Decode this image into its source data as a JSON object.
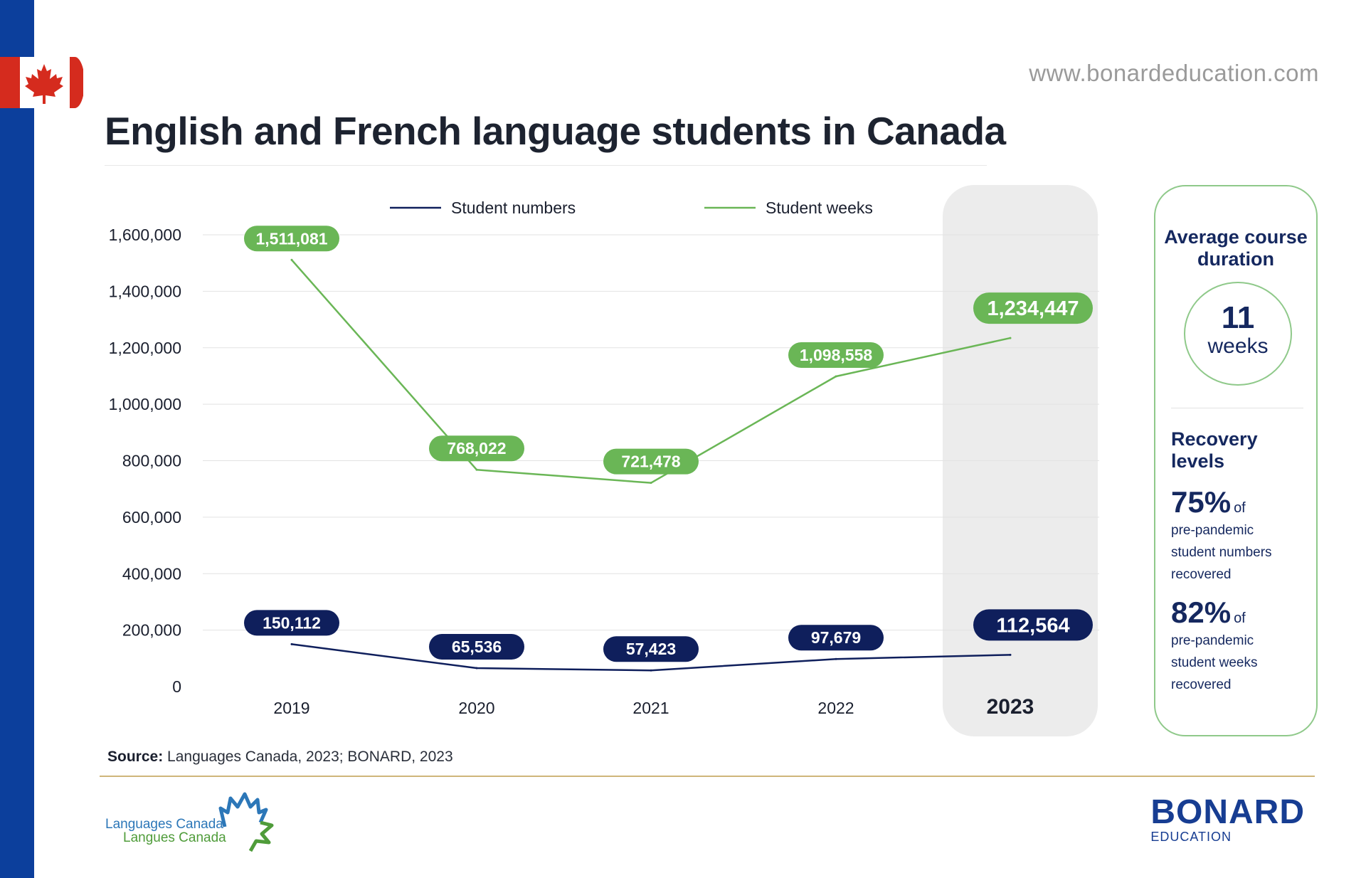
{
  "header": {
    "website": "www.bonardeducation.com",
    "title": "English and French language students in Canada"
  },
  "chart_data": {
    "type": "line",
    "title": "English and French language students in Canada",
    "categories": [
      "2019",
      "2020",
      "2021",
      "2022",
      "2023"
    ],
    "highlight_category": "2023",
    "ylim": [
      0,
      1600000
    ],
    "yticks": [
      "0",
      "200,000",
      "400,000",
      "600,000",
      "800,000",
      "1,000,000",
      "1,200,000",
      "1,400,000",
      "1,600,000"
    ],
    "grid": true,
    "legend_position": "top",
    "series": [
      {
        "name": "Student numbers",
        "color": "#0f1f5c",
        "values": [
          150112,
          65536,
          57423,
          97679,
          112564
        ],
        "labels": [
          "150,112",
          "65,536",
          "57,423",
          "97,679",
          "112,564"
        ]
      },
      {
        "name": "Student weeks",
        "color": "#6ab656",
        "values": [
          1511081,
          768022,
          721478,
          1098558,
          1234447
        ],
        "labels": [
          "1,511,081",
          "768,022",
          "721,478",
          "1,098,558",
          "1,234,447"
        ]
      }
    ]
  },
  "side_panel": {
    "duration_heading_1": "Average course",
    "duration_heading_2": "duration",
    "duration_value": "11",
    "duration_unit": "weeks",
    "recovery_heading_1": "Recovery",
    "recovery_heading_2": "levels",
    "recovery": [
      {
        "percent": "75%",
        "of": "of",
        "line1": "pre-pandemic",
        "line2": "student numbers",
        "line3": "recovered"
      },
      {
        "percent": "82%",
        "of": "of",
        "line1": "pre-pandemic",
        "line2": "student weeks",
        "line3": "recovered"
      }
    ]
  },
  "footer": {
    "source_label": "Source:",
    "source_text": "Languages Canada, 2023; BONARD, 2023",
    "lc_line1": "Languages Canada",
    "lc_line2": "Langues Canada",
    "bonard_main": "BONARD",
    "bonard_sub": "EDUCATION"
  },
  "colors": {
    "brand_blue": "#0c3f9c",
    "navy": "#0f1f5c",
    "green": "#6ab656",
    "flag_red": "#d52b1e"
  }
}
